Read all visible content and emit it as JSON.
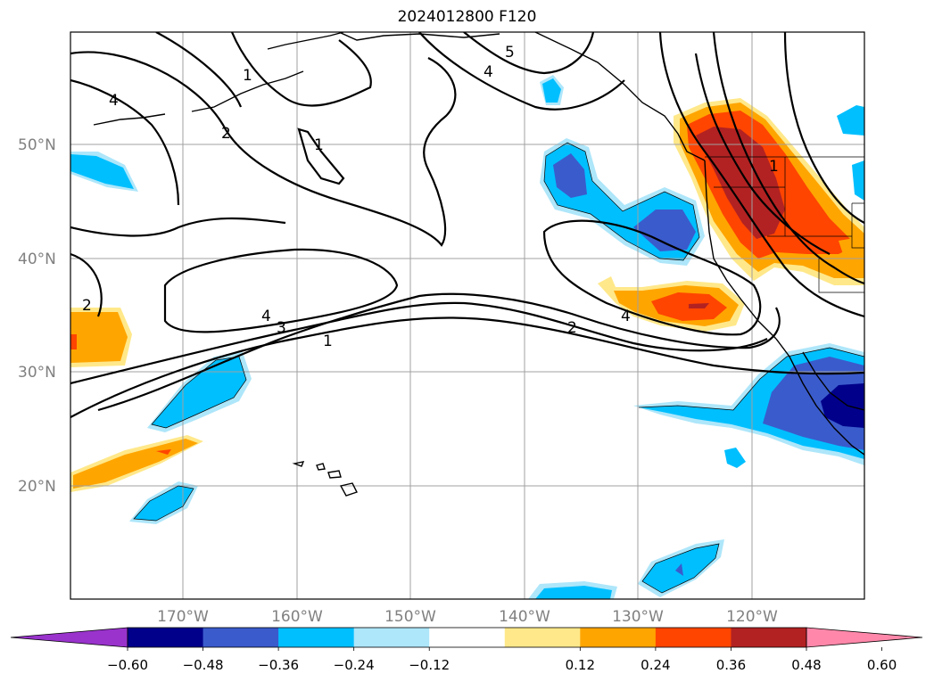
{
  "title": "2024012800 F120",
  "map": {
    "lat_labels": [
      "50°N",
      "40°N",
      "30°N",
      "20°N"
    ],
    "lon_labels": [
      "170°W",
      "160°W",
      "150°W",
      "140°W",
      "130°W",
      "120°W"
    ],
    "contour_labels": [
      "1",
      "2",
      "3",
      "4",
      "4",
      "1",
      "2",
      "4",
      "5",
      "4",
      "1",
      "2",
      "4",
      "1"
    ]
  },
  "colorbar": {
    "tick_labels": [
      "−0.60",
      "−0.48",
      "−0.36",
      "−0.24",
      "−0.12",
      "0.12",
      "0.24",
      "0.36",
      "0.48",
      "0.60"
    ],
    "colors": [
      "#9933cc",
      "#00008b",
      "#3a5bcc",
      "#00bfff",
      "#aee6fa",
      "#ffffff",
      "#ffe88a",
      "#ffa500",
      "#ff4500",
      "#b22222",
      "#ff88aa"
    ]
  },
  "fill_colors": {
    "lightblue": "#aee6fa",
    "cyan": "#00bfff",
    "blue": "#3a5bcc",
    "navy": "#00008b",
    "yellow": "#ffe88a",
    "orange": "#ffa500",
    "redorange": "#ff4500",
    "darkred": "#b22222"
  }
}
